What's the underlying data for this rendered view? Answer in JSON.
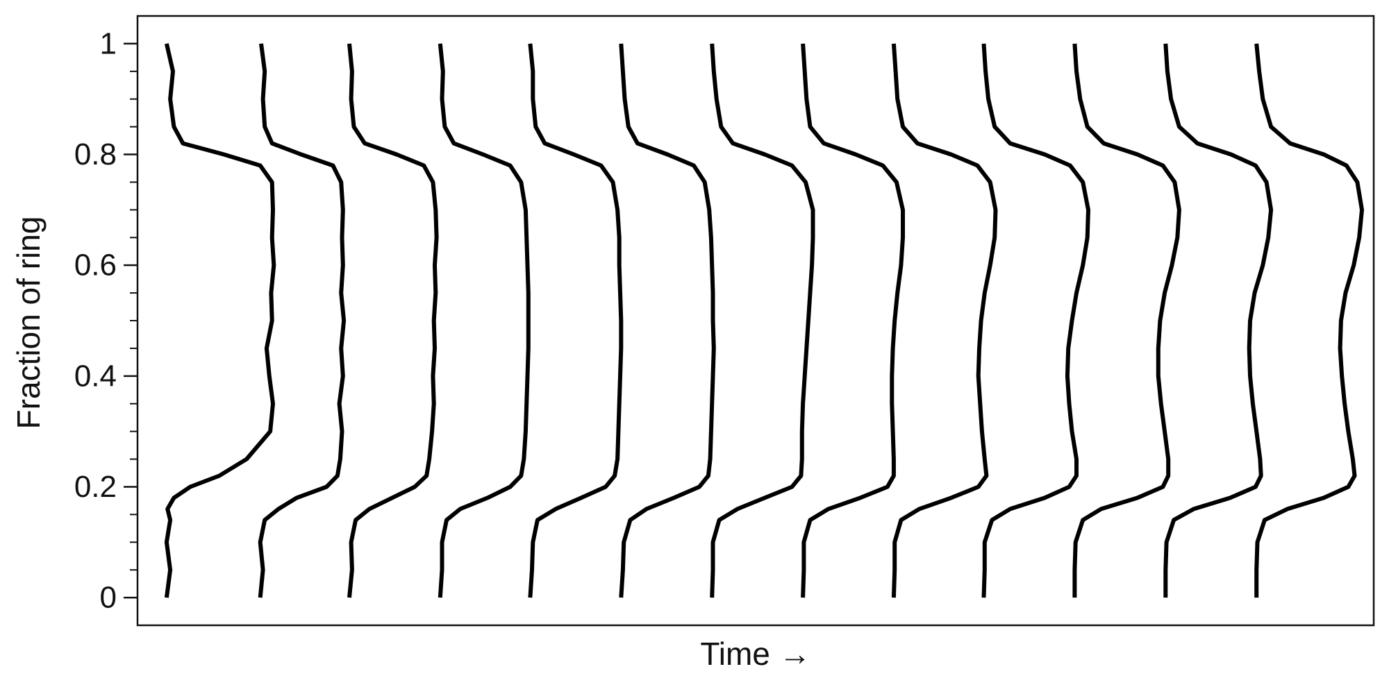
{
  "chart_data": {
    "type": "line",
    "title": "",
    "xlabel": "Time →",
    "ylabel": "Fraction of ring",
    "ylim": [
      -0.05,
      1.05
    ],
    "yticks_major": [
      {
        "value": 0,
        "label": "0"
      },
      {
        "value": 0.2,
        "label": "0.2"
      },
      {
        "value": 0.4,
        "label": "0.4"
      },
      {
        "value": 0.6,
        "label": "0.6"
      },
      {
        "value": 0.8,
        "label": "0.8"
      },
      {
        "value": 1,
        "label": "1"
      }
    ],
    "yticks_minor": [
      0.05,
      0.1,
      0.15,
      0.25,
      0.3,
      0.35,
      0.45,
      0.5,
      0.55,
      0.65,
      0.7,
      0.75,
      0.85,
      0.9,
      0.95
    ],
    "grid": false,
    "legend": "none",
    "line_color": "#000000",
    "profile_y": [
      0,
      0.05,
      0.1,
      0.14,
      0.16,
      0.18,
      0.2,
      0.22,
      0.25,
      0.3,
      0.35,
      0.4,
      0.45,
      0.5,
      0.55,
      0.6,
      0.65,
      0.7,
      0.75,
      0.78,
      0.8,
      0.82,
      0.85,
      0.9,
      0.95,
      1
    ],
    "series": [
      {
        "x": [
          0.2,
          0.6,
          0.2,
          0.6,
          0.3,
          1.0,
          2.8,
          6.0,
          9.0,
          11.6,
          11.9,
          11.5,
          11.2,
          11.8,
          11.7,
          12.0,
          11.8,
          11.9,
          11.8,
          10.5,
          6.5,
          2.0,
          1.0,
          0.6,
          0.9,
          0.2
        ]
      },
      {
        "x": [
          10.5,
          10.8,
          10.5,
          11.0,
          12.5,
          14.5,
          17.8,
          19.0,
          19.3,
          19.5,
          19.2,
          19.6,
          19.4,
          19.7,
          19.4,
          19.6,
          19.5,
          19.6,
          19.4,
          18.5,
          15.0,
          11.8,
          11.0,
          10.8,
          11.0,
          10.6
        ]
      },
      {
        "x": [
          20.3,
          20.6,
          20.5,
          21.0,
          22.5,
          25.0,
          27.5,
          28.8,
          29.1,
          29.4,
          29.6,
          29.5,
          29.7,
          29.6,
          29.8,
          29.7,
          29.9,
          29.8,
          29.5,
          28.5,
          25.5,
          22.0,
          20.8,
          20.5,
          20.6,
          20.3
        ]
      },
      {
        "x": [
          30.3,
          30.5,
          30.5,
          31.0,
          32.5,
          35.5,
          38.0,
          39.2,
          39.5,
          39.7,
          39.8,
          39.9,
          40.0,
          40.0,
          40.0,
          39.9,
          39.8,
          39.7,
          39.2,
          38.0,
          35.0,
          31.8,
          30.8,
          30.5,
          30.6,
          30.3
        ]
      },
      {
        "x": [
          40.2,
          40.4,
          40.5,
          41.0,
          43.0,
          45.8,
          48.5,
          49.5,
          49.8,
          49.9,
          50.0,
          50.1,
          50.2,
          50.2,
          50.1,
          50.0,
          50.0,
          49.8,
          49.3,
          48.0,
          45.0,
          41.8,
          40.8,
          40.5,
          40.5,
          40.2
        ]
      },
      {
        "x": [
          50.2,
          50.4,
          50.5,
          51.2,
          53.0,
          56.0,
          58.8,
          59.8,
          60.0,
          60.1,
          60.2,
          60.3,
          60.4,
          60.3,
          60.3,
          60.2,
          60.1,
          59.9,
          59.4,
          58.2,
          55.3,
          52.0,
          51.0,
          50.6,
          50.4,
          50.2
        ]
      },
      {
        "x": [
          60.2,
          60.3,
          60.3,
          61.0,
          63.0,
          66.0,
          69.0,
          70.0,
          70.1,
          70.1,
          70.2,
          70.4,
          70.6,
          70.8,
          71.0,
          71.2,
          71.3,
          71.3,
          70.5,
          69.0,
          66.0,
          62.5,
          61.2,
          60.7,
          60.4,
          60.2
        ]
      },
      {
        "x": [
          70.2,
          70.3,
          70.3,
          71.0,
          73.0,
          76.5,
          79.5,
          80.2,
          80.2,
          80.1,
          80.0,
          80.0,
          80.1,
          80.3,
          80.6,
          81.0,
          81.2,
          81.2,
          80.5,
          79.0,
          76.0,
          72.5,
          71.0,
          70.6,
          70.4,
          70.2
        ]
      },
      {
        "x": [
          80.2,
          80.3,
          80.3,
          81.0,
          83.0,
          86.5,
          89.5,
          90.4,
          90.2,
          89.9,
          89.7,
          89.5,
          89.6,
          89.8,
          90.2,
          90.8,
          91.3,
          91.4,
          90.8,
          89.4,
          86.5,
          82.8,
          81.2,
          80.6,
          80.4,
          80.2
        ]
      },
      {
        "x": [
          90.1,
          90.2,
          90.2,
          91.0,
          93.0,
          96.8,
          99.5,
          100.3,
          100.3,
          99.8,
          99.5,
          99.3,
          99.4,
          99.8,
          100.3,
          101.0,
          101.5,
          101.6,
          101.0,
          99.6,
          96.8,
          93.0,
          91.3,
          90.6,
          90.3,
          90.1
        ]
      },
      {
        "x": [
          100.1,
          100.1,
          100.2,
          101.0,
          103.0,
          107.0,
          109.8,
          110.4,
          110.4,
          110.0,
          109.6,
          109.3,
          109.3,
          109.5,
          110.0,
          110.8,
          111.4,
          111.6,
          111.1,
          109.8,
          107.0,
          103.3,
          101.5,
          100.7,
          100.3,
          100.1
        ]
      },
      {
        "x": [
          110.1,
          110.1,
          110.2,
          111.0,
          113.2,
          117.2,
          120.0,
          120.6,
          120.5,
          120.1,
          119.7,
          119.4,
          119.3,
          119.4,
          119.9,
          120.8,
          121.4,
          121.7,
          121.2,
          120.0,
          117.3,
          113.6,
          111.6,
          110.7,
          110.3,
          110.1
        ]
      },
      {
        "x": [
          120.1,
          120.1,
          120.2,
          121.0,
          123.5,
          127.5,
          130.2,
          130.9,
          130.7,
          130.2,
          129.8,
          129.5,
          129.3,
          129.4,
          129.9,
          130.8,
          131.4,
          131.7,
          131.2,
          130.0,
          127.5,
          123.8,
          121.7,
          120.8,
          120.4,
          120.1
        ]
      }
    ],
    "xlim": [
      -3,
      133
    ]
  }
}
